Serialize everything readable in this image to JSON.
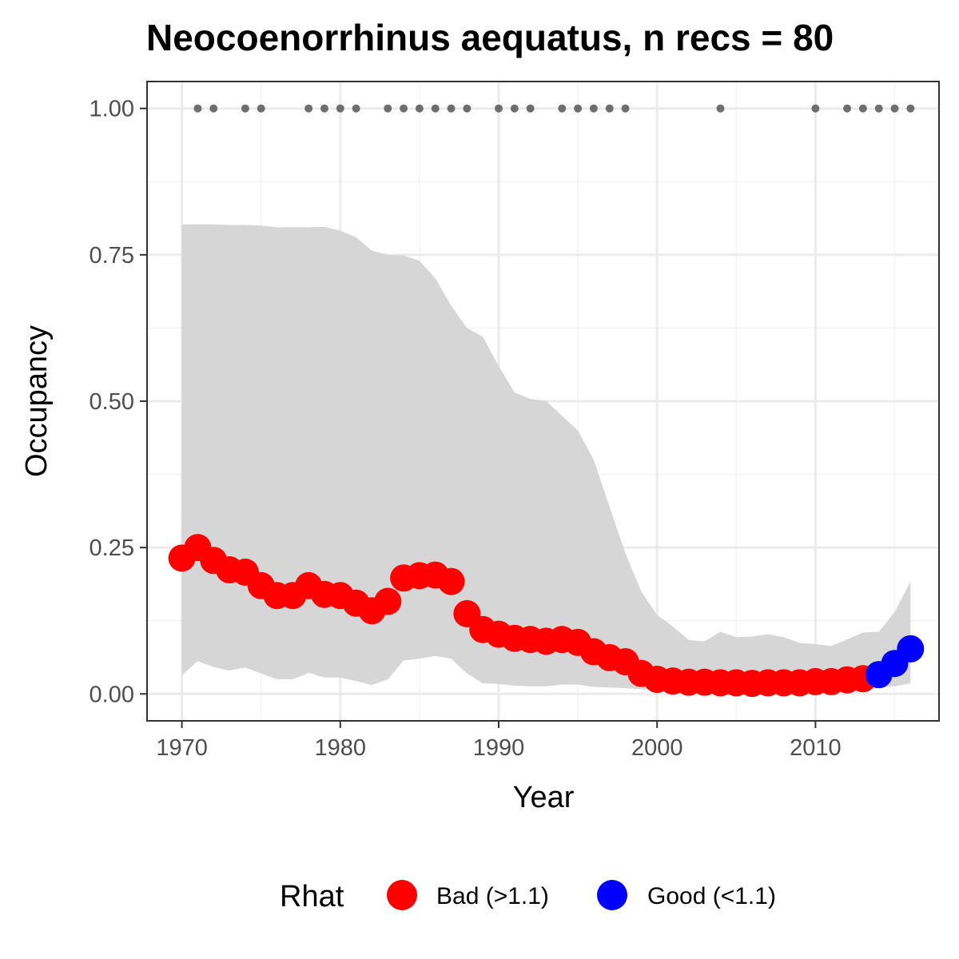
{
  "chart_data": {
    "type": "line",
    "title": "Neocoenorrhinus aequatus, n recs = 80",
    "xlabel": "Year",
    "ylabel": "Occupancy",
    "xlim": [
      1967.8,
      2017.8
    ],
    "ylim": [
      -0.046,
      1.046
    ],
    "x_ticks": [
      1970,
      1980,
      1990,
      2000,
      2010
    ],
    "y_ticks": [
      0.0,
      0.25,
      0.5,
      0.75,
      1.0
    ],
    "y_tick_labels": [
      "0.00",
      "0.25",
      "0.50",
      "0.75",
      "1.00"
    ],
    "grid": true,
    "years": [
      1970,
      1971,
      1972,
      1973,
      1974,
      1975,
      1976,
      1977,
      1978,
      1979,
      1980,
      1981,
      1982,
      1983,
      1984,
      1985,
      1986,
      1987,
      1988,
      1989,
      1990,
      1991,
      1992,
      1993,
      1994,
      1995,
      1996,
      1997,
      1998,
      1999,
      2000,
      2001,
      2002,
      2003,
      2004,
      2005,
      2006,
      2007,
      2008,
      2009,
      2010,
      2011,
      2012,
      2013,
      2014,
      2015,
      2016
    ],
    "occupancy": [
      0.232,
      0.25,
      0.228,
      0.212,
      0.208,
      0.185,
      0.168,
      0.168,
      0.185,
      0.17,
      0.168,
      0.155,
      0.142,
      0.158,
      0.198,
      0.202,
      0.203,
      0.192,
      0.137,
      0.11,
      0.102,
      0.095,
      0.093,
      0.09,
      0.093,
      0.088,
      0.072,
      0.062,
      0.055,
      0.035,
      0.025,
      0.022,
      0.02,
      0.02,
      0.019,
      0.019,
      0.018,
      0.019,
      0.019,
      0.019,
      0.021,
      0.021,
      0.024,
      0.026,
      0.033,
      0.052,
      0.077
    ],
    "ci_upper": [
      0.802,
      0.802,
      0.802,
      0.801,
      0.801,
      0.8,
      0.797,
      0.797,
      0.797,
      0.798,
      0.791,
      0.78,
      0.757,
      0.75,
      0.749,
      0.74,
      0.71,
      0.663,
      0.625,
      0.61,
      0.56,
      0.515,
      0.504,
      0.5,
      0.475,
      0.45,
      0.4,
      0.32,
      0.24,
      0.175,
      0.135,
      0.115,
      0.092,
      0.09,
      0.106,
      0.097,
      0.098,
      0.102,
      0.097,
      0.087,
      0.085,
      0.082,
      0.093,
      0.105,
      0.106,
      0.14,
      0.192
    ],
    "ci_lower": [
      0.032,
      0.056,
      0.046,
      0.04,
      0.045,
      0.035,
      0.025,
      0.025,
      0.036,
      0.028,
      0.028,
      0.022,
      0.015,
      0.025,
      0.057,
      0.06,
      0.065,
      0.06,
      0.035,
      0.018,
      0.017,
      0.014,
      0.013,
      0.013,
      0.016,
      0.016,
      0.012,
      0.011,
      0.01,
      0.008,
      0.007,
      0.007,
      0.007,
      0.007,
      0.007,
      0.007,
      0.007,
      0.007,
      0.007,
      0.007,
      0.007,
      0.007,
      0.007,
      0.008,
      0.01,
      0.013,
      0.018
    ],
    "rhat_status": [
      "bad",
      "bad",
      "bad",
      "bad",
      "bad",
      "bad",
      "bad",
      "bad",
      "bad",
      "bad",
      "bad",
      "bad",
      "bad",
      "bad",
      "bad",
      "bad",
      "bad",
      "bad",
      "bad",
      "bad",
      "bad",
      "bad",
      "bad",
      "bad",
      "bad",
      "bad",
      "bad",
      "bad",
      "bad",
      "bad",
      "bad",
      "bad",
      "bad",
      "bad",
      "bad",
      "bad",
      "bad",
      "bad",
      "bad",
      "bad",
      "bad",
      "bad",
      "bad",
      "bad",
      "good",
      "good",
      "good"
    ],
    "record_years": [
      1971,
      1972,
      1974,
      1975,
      1978,
      1979,
      1980,
      1981,
      1983,
      1984,
      1985,
      1986,
      1987,
      1988,
      1990,
      1991,
      1992,
      1994,
      1995,
      1996,
      1997,
      1998,
      2004,
      2010,
      2012,
      2013,
      2014,
      2015,
      2016
    ],
    "record_value": 1.0,
    "legend": {
      "title": "Rhat",
      "position": "bottom",
      "items": [
        {
          "key": "bad",
          "label": "Bad (>1.1)",
          "color": "#ff0000"
        },
        {
          "key": "good",
          "label": "Good (<1.1)",
          "color": "#0000ff"
        }
      ]
    },
    "colors": {
      "ribbon": "#d6d6d6",
      "records": "#6e6e6e",
      "bad": "#ff0000",
      "good": "#0000ff",
      "grid_major": "#ebebeb",
      "grid_minor": "#f4f4f4",
      "panel_border": "#333333"
    }
  }
}
